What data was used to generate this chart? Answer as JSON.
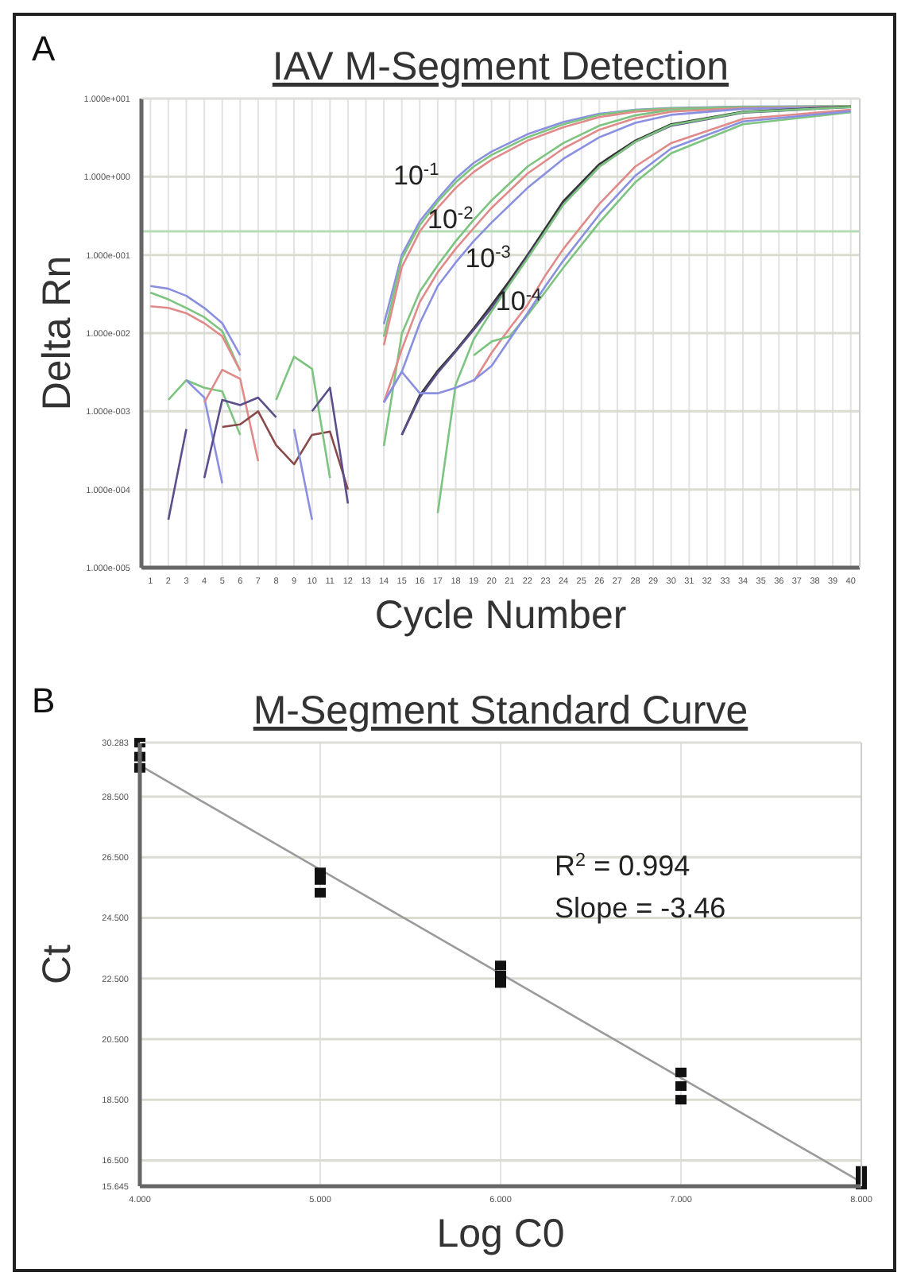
{
  "chart_data": [
    {
      "type": "line",
      "title": "IAV M-Segment Detection",
      "xlabel": "Cycle Number",
      "ylabel": "Delta Rn",
      "log": "y",
      "grid": true,
      "xlim": [
        0.5,
        40.5
      ],
      "xticks": [
        1,
        2,
        3,
        4,
        5,
        6,
        7,
        8,
        9,
        10,
        11,
        12,
        13,
        14,
        15,
        16,
        17,
        18,
        19,
        20,
        21,
        22,
        23,
        24,
        25,
        26,
        27,
        28,
        29,
        30,
        31,
        32,
        33,
        34,
        35,
        36,
        37,
        38,
        39,
        40
      ],
      "ylim": [
        1e-05,
        10
      ],
      "yticks": [
        {
          "value": 1e-05,
          "label": "1.000e-005"
        },
        {
          "value": 0.0001,
          "label": "1.000e-004"
        },
        {
          "value": 0.001,
          "label": "1.000e-003"
        },
        {
          "value": 0.01,
          "label": "1.000e-002"
        },
        {
          "value": 0.1,
          "label": "1.000e-001"
        },
        {
          "value": 1,
          "label": "1.000e+000"
        },
        {
          "value": 10,
          "label": "1.000e+001"
        }
      ],
      "ref_lines": [
        {
          "axis": "y",
          "value": 0.2,
          "color": "#b5dcb5"
        }
      ],
      "annotations": [
        "A",
        "10$^{-1}$",
        "10$^{-2}$",
        "10$^{-3}$",
        "10$^{-4}$"
      ],
      "series": [
        {
          "color": "#8a8fe0",
          "x": [
            14,
            15,
            16,
            17,
            18,
            19,
            20,
            22,
            24,
            26,
            28,
            30,
            34,
            40
          ],
          "values": [
            0.013,
            0.1,
            0.27,
            0.52,
            0.95,
            1.5,
            2.1,
            3.5,
            5.0,
            6.4,
            7.2,
            7.6,
            7.9,
            8.0
          ]
        },
        {
          "color": "#7cc47f",
          "x": [
            14,
            15,
            16,
            17,
            18,
            19,
            20,
            22,
            24,
            26,
            28,
            30,
            34,
            40
          ],
          "values": [
            0.009,
            0.09,
            0.24,
            0.48,
            0.85,
            1.35,
            1.9,
            3.2,
            4.7,
            6.2,
            7.1,
            7.5,
            7.8,
            8.0
          ]
        },
        {
          "color": "#e08a8a",
          "x": [
            14,
            15,
            16,
            17,
            18,
            19,
            20,
            22,
            24,
            26,
            28,
            30,
            34,
            40
          ],
          "values": [
            0.007,
            0.07,
            0.2,
            0.4,
            0.72,
            1.15,
            1.65,
            2.9,
            4.3,
            5.8,
            6.8,
            7.3,
            7.7,
            7.9
          ]
        },
        {
          "color": "#7cc47f",
          "x": [
            14,
            15,
            16,
            17,
            18,
            19,
            20,
            22,
            24,
            26,
            28,
            30,
            34,
            40
          ],
          "values": [
            0.00036,
            0.0098,
            0.034,
            0.074,
            0.15,
            0.28,
            0.5,
            1.35,
            2.7,
            4.5,
            6.1,
            7.2,
            7.8,
            8.0
          ]
        },
        {
          "color": "#e08a8a",
          "x": [
            14,
            15,
            16,
            17,
            18,
            19,
            20,
            22,
            24,
            26,
            28,
            30,
            34,
            40
          ],
          "values": [
            0.0013,
            0.0062,
            0.025,
            0.06,
            0.12,
            0.22,
            0.4,
            1.1,
            2.3,
            4.0,
            5.6,
            6.8,
            7.6,
            7.9
          ]
        },
        {
          "color": "#8a8fe0",
          "x": [
            14,
            15,
            16,
            17,
            18,
            19,
            20,
            22,
            24,
            26,
            28,
            30,
            34,
            40
          ],
          "values": [
            0.0013,
            0.0032,
            0.0134,
            0.04,
            0.08,
            0.15,
            0.26,
            0.72,
            1.7,
            3.2,
            4.9,
            6.2,
            7.4,
            7.8
          ]
        },
        {
          "color": "#333333",
          "x": [
            15,
            16,
            17,
            18,
            19,
            20,
            21,
            22,
            23,
            24,
            26,
            28,
            30,
            34,
            40
          ],
          "values": [
            0.0005,
            0.0016,
            0.0033,
            0.006,
            0.0115,
            0.023,
            0.047,
            0.1,
            0.22,
            0.49,
            1.45,
            2.9,
            4.7,
            6.8,
            7.9
          ]
        },
        {
          "color": "#5b4e8a",
          "x": [
            15,
            16,
            17,
            18,
            19,
            20,
            21,
            22,
            23,
            24,
            26,
            28,
            30,
            34,
            40
          ],
          "values": [
            0.0005,
            0.0015,
            0.0031,
            0.0058,
            0.011,
            0.021,
            0.043,
            0.095,
            0.2,
            0.45,
            1.35,
            2.8,
            4.5,
            6.6,
            7.8
          ]
        },
        {
          "color": "#7cc47f",
          "x": [
            17,
            18,
            19,
            20,
            21,
            22,
            23,
            24,
            26,
            28,
            30,
            34,
            40
          ],
          "values": [
            5e-05,
            0.0022,
            0.0083,
            0.019,
            0.042,
            0.09,
            0.2,
            0.44,
            1.35,
            2.8,
            4.6,
            6.7,
            7.8
          ]
        },
        {
          "color": "#e08a8a",
          "x": [
            19,
            20,
            21,
            22,
            23,
            24,
            26,
            28,
            30,
            34,
            40
          ],
          "values": [
            0.0024,
            0.0056,
            0.0115,
            0.023,
            0.055,
            0.12,
            0.45,
            1.35,
            2.7,
            5.5,
            7.2
          ]
        },
        {
          "color": "#7cc47f",
          "x": [
            19,
            20,
            21,
            22,
            23,
            24,
            26,
            28,
            30,
            34,
            40
          ],
          "values": [
            0.0052,
            0.0078,
            0.0091,
            0.017,
            0.034,
            0.069,
            0.26,
            0.85,
            2.0,
            4.7,
            6.7
          ]
        },
        {
          "color": "#8a8fe0",
          "x": [
            14,
            15,
            16,
            17,
            18,
            19,
            20,
            21,
            22,
            23,
            24,
            26,
            28,
            30,
            34,
            40
          ],
          "values": [
            0.0013,
            0.0032,
            0.0017,
            0.0017,
            0.002,
            0.0025,
            0.0038,
            0.0083,
            0.018,
            0.04,
            0.085,
            0.33,
            1.03,
            2.3,
            5.1,
            6.9
          ]
        },
        {
          "color": "#8a8fe0",
          "x": [
            1,
            2,
            3,
            4,
            5,
            6
          ],
          "values": [
            0.04,
            0.037,
            0.03,
            0.021,
            0.0134,
            0.0052
          ]
        },
        {
          "color": "#7cc47f",
          "x": [
            1,
            2,
            3,
            4,
            5,
            6
          ],
          "values": [
            0.033,
            0.027,
            0.021,
            0.016,
            0.0106,
            0.0033
          ]
        },
        {
          "color": "#e08a8a",
          "x": [
            1,
            2,
            3,
            4,
            5,
            6
          ],
          "values": [
            0.022,
            0.021,
            0.018,
            0.0134,
            0.0091,
            0.0033
          ]
        },
        {
          "color": "#5b4e8a",
          "x": [
            2,
            3
          ],
          "values": [
            4.1e-05,
            0.00059
          ]
        },
        {
          "color": "#7cc47f",
          "x": [
            2,
            3,
            4,
            5,
            6
          ],
          "values": [
            0.0014,
            0.0025,
            0.002,
            0.0018,
            0.0005
          ]
        },
        {
          "color": "#8a8fe0",
          "x": [
            3,
            4,
            5
          ],
          "values": [
            0.0025,
            0.0015,
            0.00012
          ]
        },
        {
          "color": "#e08a8a",
          "x": [
            4,
            5,
            6,
            7
          ],
          "values": [
            0.0013,
            0.0034,
            0.0026,
            0.00023
          ]
        },
        {
          "color": "#5b4e8a",
          "x": [
            4,
            5,
            6,
            7,
            8
          ],
          "values": [
            0.00014,
            0.0014,
            0.0012,
            0.0015,
            0.00084
          ]
        },
        {
          "color": "#8a4a4a",
          "x": [
            5,
            6,
            7,
            8,
            9,
            10,
            11,
            12
          ],
          "values": [
            0.00063,
            0.00068,
            0.001,
            0.00037,
            0.00021,
            0.0005,
            0.00055,
            0.0001
          ]
        },
        {
          "color": "#7cc47f",
          "x": [
            8,
            9,
            10,
            11
          ],
          "values": [
            0.0014,
            0.005,
            0.0035,
            0.00014
          ]
        },
        {
          "color": "#8a8fe0",
          "x": [
            9,
            10
          ],
          "values": [
            0.00059,
            4.1e-05
          ]
        },
        {
          "color": "#5b4e8a",
          "x": [
            10,
            11,
            12
          ],
          "values": [
            0.001,
            0.002,
            6.6e-05
          ]
        }
      ]
    },
    {
      "type": "scatter",
      "title": "M-Segment Standard Curve",
      "xlabel": "Log C0",
      "ylabel": "Ct",
      "grid": true,
      "xlim": [
        4,
        8
      ],
      "xticks": [
        {
          "value": 4,
          "label": "4.000"
        },
        {
          "value": 5,
          "label": "5.000"
        },
        {
          "value": 6,
          "label": "6.000"
        },
        {
          "value": 7,
          "label": "7.000"
        },
        {
          "value": 8,
          "label": "8.000"
        }
      ],
      "ylim": [
        15.645,
        30.283
      ],
      "yticks": [
        {
          "value": 15.645,
          "label": "15.645"
        },
        {
          "value": 16.5,
          "label": "16.500"
        },
        {
          "value": 18.5,
          "label": "18.500"
        },
        {
          "value": 20.5,
          "label": "20.500"
        },
        {
          "value": 22.5,
          "label": "22.500"
        },
        {
          "value": 24.5,
          "label": "24.500"
        },
        {
          "value": 26.5,
          "label": "26.500"
        },
        {
          "value": 28.5,
          "label": "28.500"
        },
        {
          "value": 30.283,
          "label": "30.283"
        }
      ],
      "annotations": [
        "B",
        "R$^{2}$ = 0.994",
        "Slope = -3.46"
      ],
      "series": [
        {
          "color": "#111111",
          "marker": "square",
          "x": [
            4,
            4,
            4,
            5,
            5,
            5,
            6,
            6,
            6,
            7,
            7,
            7,
            8,
            8,
            8
          ],
          "values": [
            30.28,
            29.82,
            29.45,
            26.0,
            25.75,
            25.33,
            22.93,
            22.6,
            22.35,
            19.4,
            18.95,
            18.5,
            16.15,
            15.9,
            15.7
          ]
        },
        {
          "type": "line",
          "marker": "none",
          "color": "#9a9a9a",
          "x": [
            4,
            8
          ],
          "values": [
            29.53,
            15.78
          ]
        }
      ]
    }
  ]
}
